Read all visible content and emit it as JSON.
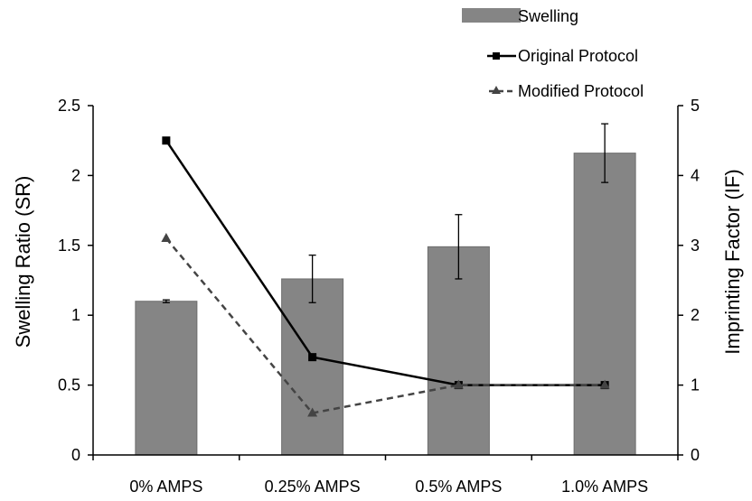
{
  "chart_data": {
    "type": "bar",
    "categories": [
      "0% AMPS",
      "0.25% AMPS",
      "0.5% AMPS",
      "1.0% AMPS"
    ],
    "left_axis": {
      "label": "Swelling Ratio (SR)",
      "ylim": [
        0,
        2.5
      ],
      "ticks": [
        "0",
        "0.5",
        "1",
        "1.5",
        "2",
        "2.5"
      ]
    },
    "right_axis": {
      "label": "Imprinting Factor (IF)",
      "ylim": [
        0,
        5
      ],
      "ticks": [
        "0",
        "1",
        "2",
        "3",
        "4",
        "5"
      ]
    },
    "bar_series": {
      "name": "Swelling",
      "axis": "left",
      "values": [
        1.1,
        1.26,
        1.49,
        2.16
      ],
      "errors": [
        0.01,
        0.17,
        0.23,
        0.21
      ]
    },
    "line_series": [
      {
        "name": "Original Protocol",
        "axis": "right",
        "values": [
          4.5,
          1.4,
          1.0,
          1.0
        ],
        "style": "solid",
        "marker": "square"
      },
      {
        "name": "Modified Protocol",
        "axis": "right",
        "values": [
          3.1,
          0.6,
          1.0,
          1.0
        ],
        "style": "dashed",
        "marker": "triangle"
      }
    ],
    "legend_position": "top-right",
    "grid": false
  },
  "colors": {
    "bar": "#858585",
    "bar_edge": "#6e6e6e",
    "original_line": "#000000",
    "modified_line": "#444444",
    "axis": "#000000"
  }
}
